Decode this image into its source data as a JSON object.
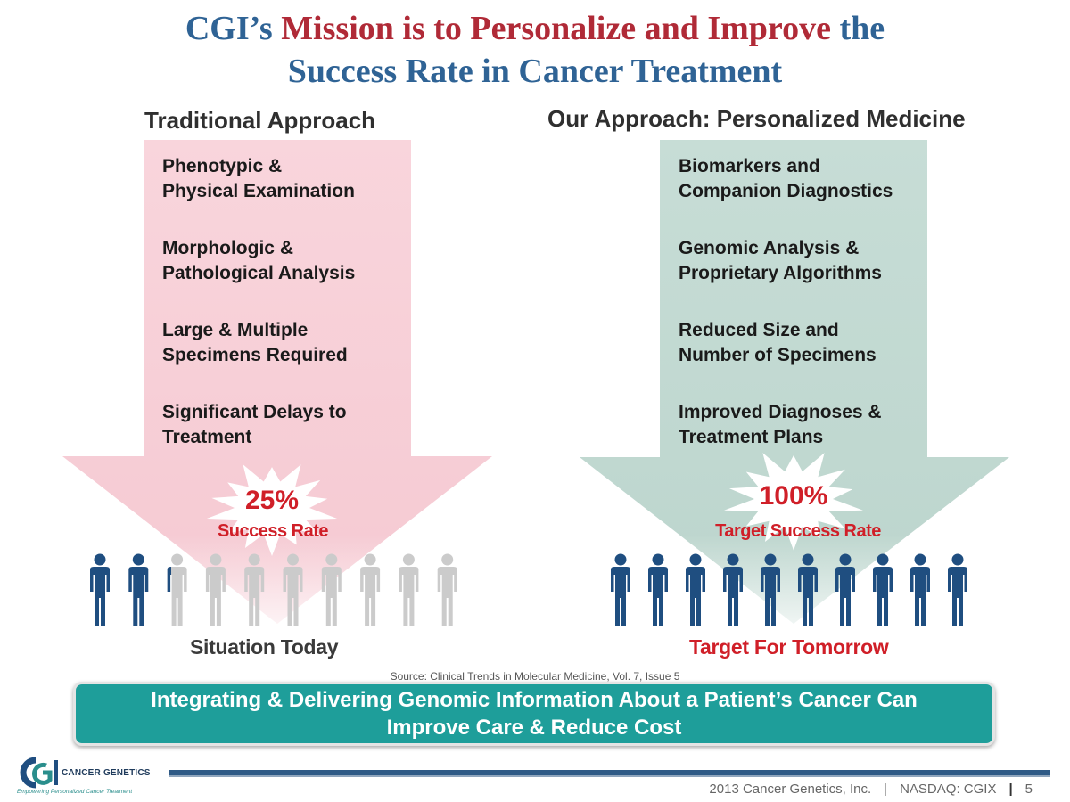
{
  "title": {
    "part1": "CGI’s ",
    "part2": "Mission is to Personalize and Improve",
    "part3": " the",
    "line2": "Success Rate in Cancer Treatment"
  },
  "left": {
    "heading": "Traditional Approach",
    "items": [
      "Phenotypic &\nPhysical Examination",
      "Morphologic &\nPathological Analysis",
      "Large & Multiple\nSpecimens Required",
      "Significant Delays to\nTreatment"
    ],
    "rate_value": "25%",
    "rate_label": "Success Rate",
    "people_total": 10,
    "people_highlighted": 2.5,
    "caption": "Situation Today"
  },
  "right": {
    "heading": "Our Approach: Personalized Medicine",
    "items": [
      "Biomarkers and\nCompanion Diagnostics",
      "Genomic Analysis &\nProprietary Algorithms",
      "Reduced Size and\nNumber of Specimens",
      "Improved Diagnoses &\nTreatment Plans"
    ],
    "rate_value": "100%",
    "rate_label": "Target Success Rate",
    "people_total": 10,
    "people_highlighted": 10,
    "caption": "Target For Tomorrow"
  },
  "source": "Source: Clinical Trends in Molecular Medicine, Vol. 7, Issue 5",
  "banner": "Integrating & Delivering Genomic Information About a Patient’s Cancer Can\nImprove Care & Reduce Cost",
  "logo": {
    "name": "CANCER GENETICS",
    "tagline": "Empowering Personalized Cancer Treatment"
  },
  "footer": {
    "copyright": "2013 Cancer Genetics, Inc.",
    "ticker": "NASDAQ: CGIX",
    "page": "5"
  },
  "colors": {
    "title_blue": "#2f6395",
    "title_red": "#b02a37",
    "left_arrow": "#f7d0d8",
    "right_arrow": "#c3d9d2",
    "person_dark": "#1f4e80",
    "person_light": "#cbcbcb",
    "rate_red": "#d01f28",
    "banner_teal": "#1e9e9a"
  }
}
